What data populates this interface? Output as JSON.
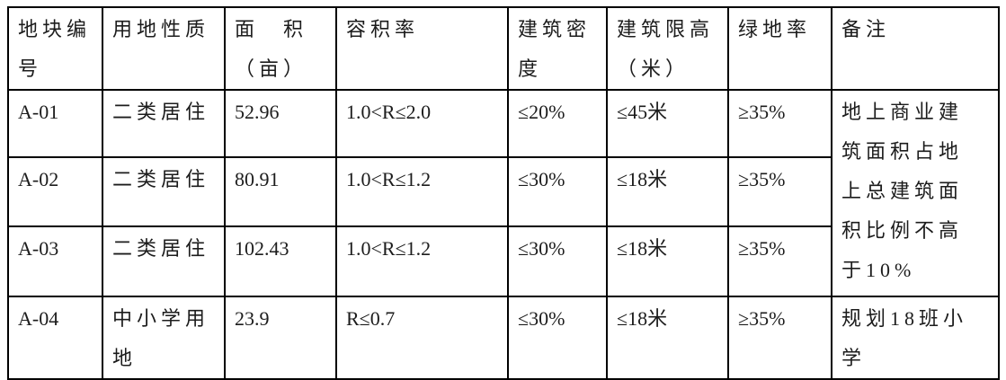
{
  "table": {
    "headers": [
      "地块编\n号",
      "用地性质",
      "面　积\n（亩）",
      "容积率",
      "建筑密\n度",
      "建筑限高\n（米）",
      "绿地率",
      "备注"
    ],
    "rows": [
      {
        "parcel_id": "A-01",
        "land_use": "二类居住",
        "area_mu": "52.96",
        "far": "1.0<R≤2.0",
        "building_density": "≤20%",
        "height_limit": "≤45米",
        "green_ratio": "≥35%"
      },
      {
        "parcel_id": "A-02",
        "land_use": "二类居住",
        "area_mu": "80.91",
        "far": "1.0<R≤1.2",
        "building_density": "≤30%",
        "height_limit": "≤18米",
        "green_ratio": "≥35%"
      },
      {
        "parcel_id": "A-03",
        "land_use": "二类居住",
        "area_mu": "102.43",
        "far": "1.0<R≤1.2",
        "building_density": "≤30%",
        "height_limit": "≤18米",
        "green_ratio": "≥35%"
      },
      {
        "parcel_id": "A-04",
        "land_use": "中小学用\n地",
        "area_mu": "23.9",
        "far": "R≤0.7",
        "building_density": "≤30%",
        "height_limit": "≤18米",
        "green_ratio": "≥35%",
        "remark": "规划18班小\n学"
      }
    ],
    "merged_remark_rows_1_to_3": "地上商业建\n筑面积占地\n上总建筑面\n积比例不高\n于10%",
    "colors": {
      "border": "#000000",
      "text": "#1c1c1c",
      "background": "#ffffff"
    }
  }
}
